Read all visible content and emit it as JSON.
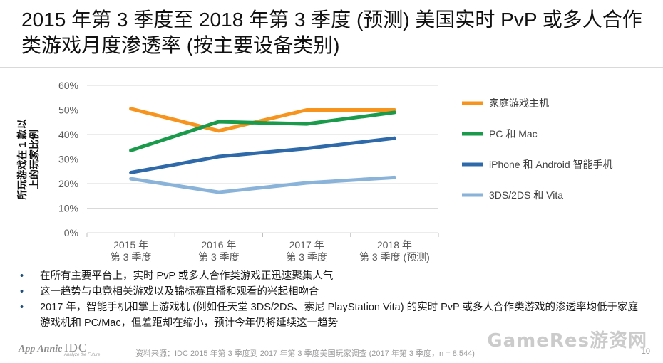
{
  "title": "2015 年第 3 季度至 2018 年第 3 季度 (预测) 美国实时 PvP 或多人合作类游戏月度渗透率 (按主要设备类别)",
  "chart_data": {
    "type": "line",
    "ylabel": "所玩游戏在 1 款以上的玩家比例",
    "ylim": [
      0,
      60
    ],
    "yticks": [
      "0%",
      "10%",
      "20%",
      "30%",
      "40%",
      "50%",
      "60%"
    ],
    "categories": [
      [
        "2015 年",
        "第 3 季度"
      ],
      [
        "2016 年",
        "第 3 季度"
      ],
      [
        "2017 年",
        "第 3 季度"
      ],
      [
        "2018 年",
        "第 3 季度 (预测)"
      ]
    ],
    "grid": "horizontal",
    "legend_position": "right",
    "series": [
      {
        "name": "家庭游戏主机",
        "color": "#f7941d",
        "values": [
          50.5,
          41.5,
          50,
          50
        ]
      },
      {
        "name": "PC 和 Mac",
        "color": "#1a9b4b",
        "values": [
          33.5,
          45.2,
          44.3,
          49
        ]
      },
      {
        "name": "iPhone 和 Android 智能手机",
        "color": "#2e6aa9",
        "values": [
          24.5,
          31,
          34.3,
          38.5
        ]
      },
      {
        "name": "3DS/2DS 和 Vita",
        "color": "#8ab3da",
        "values": [
          22,
          16.5,
          20.3,
          22.5
        ]
      }
    ]
  },
  "bullets": [
    "在所有主要平台上，实时 PvP 或多人合作类游戏正迅速聚集人气",
    "这一趋势与电竞相关游戏以及锦标赛直播和观看的兴起相吻合",
    "2017 年，智能手机和掌上游戏机 (例如任天堂 3DS/2DS、索尼 PlayStation Vita) 的实时 PvP 或多人合作类游戏的渗透率均低于家庭游戏机和 PC/Mac，但差距却在缩小，预计今年仍将延续这一趋势"
  ],
  "footer": {
    "logo_app_annie": "App Annie",
    "logo_idc": "IDC",
    "logo_idc_tagline": "Analyze the Future",
    "source": "资料来源：IDC 2015 年第 3 季度到 2017 年第 3 季度美国玩家调查 (2017 年第 3 季度，n = 8,544)",
    "page": "10",
    "watermark": "GameRes游资网"
  }
}
